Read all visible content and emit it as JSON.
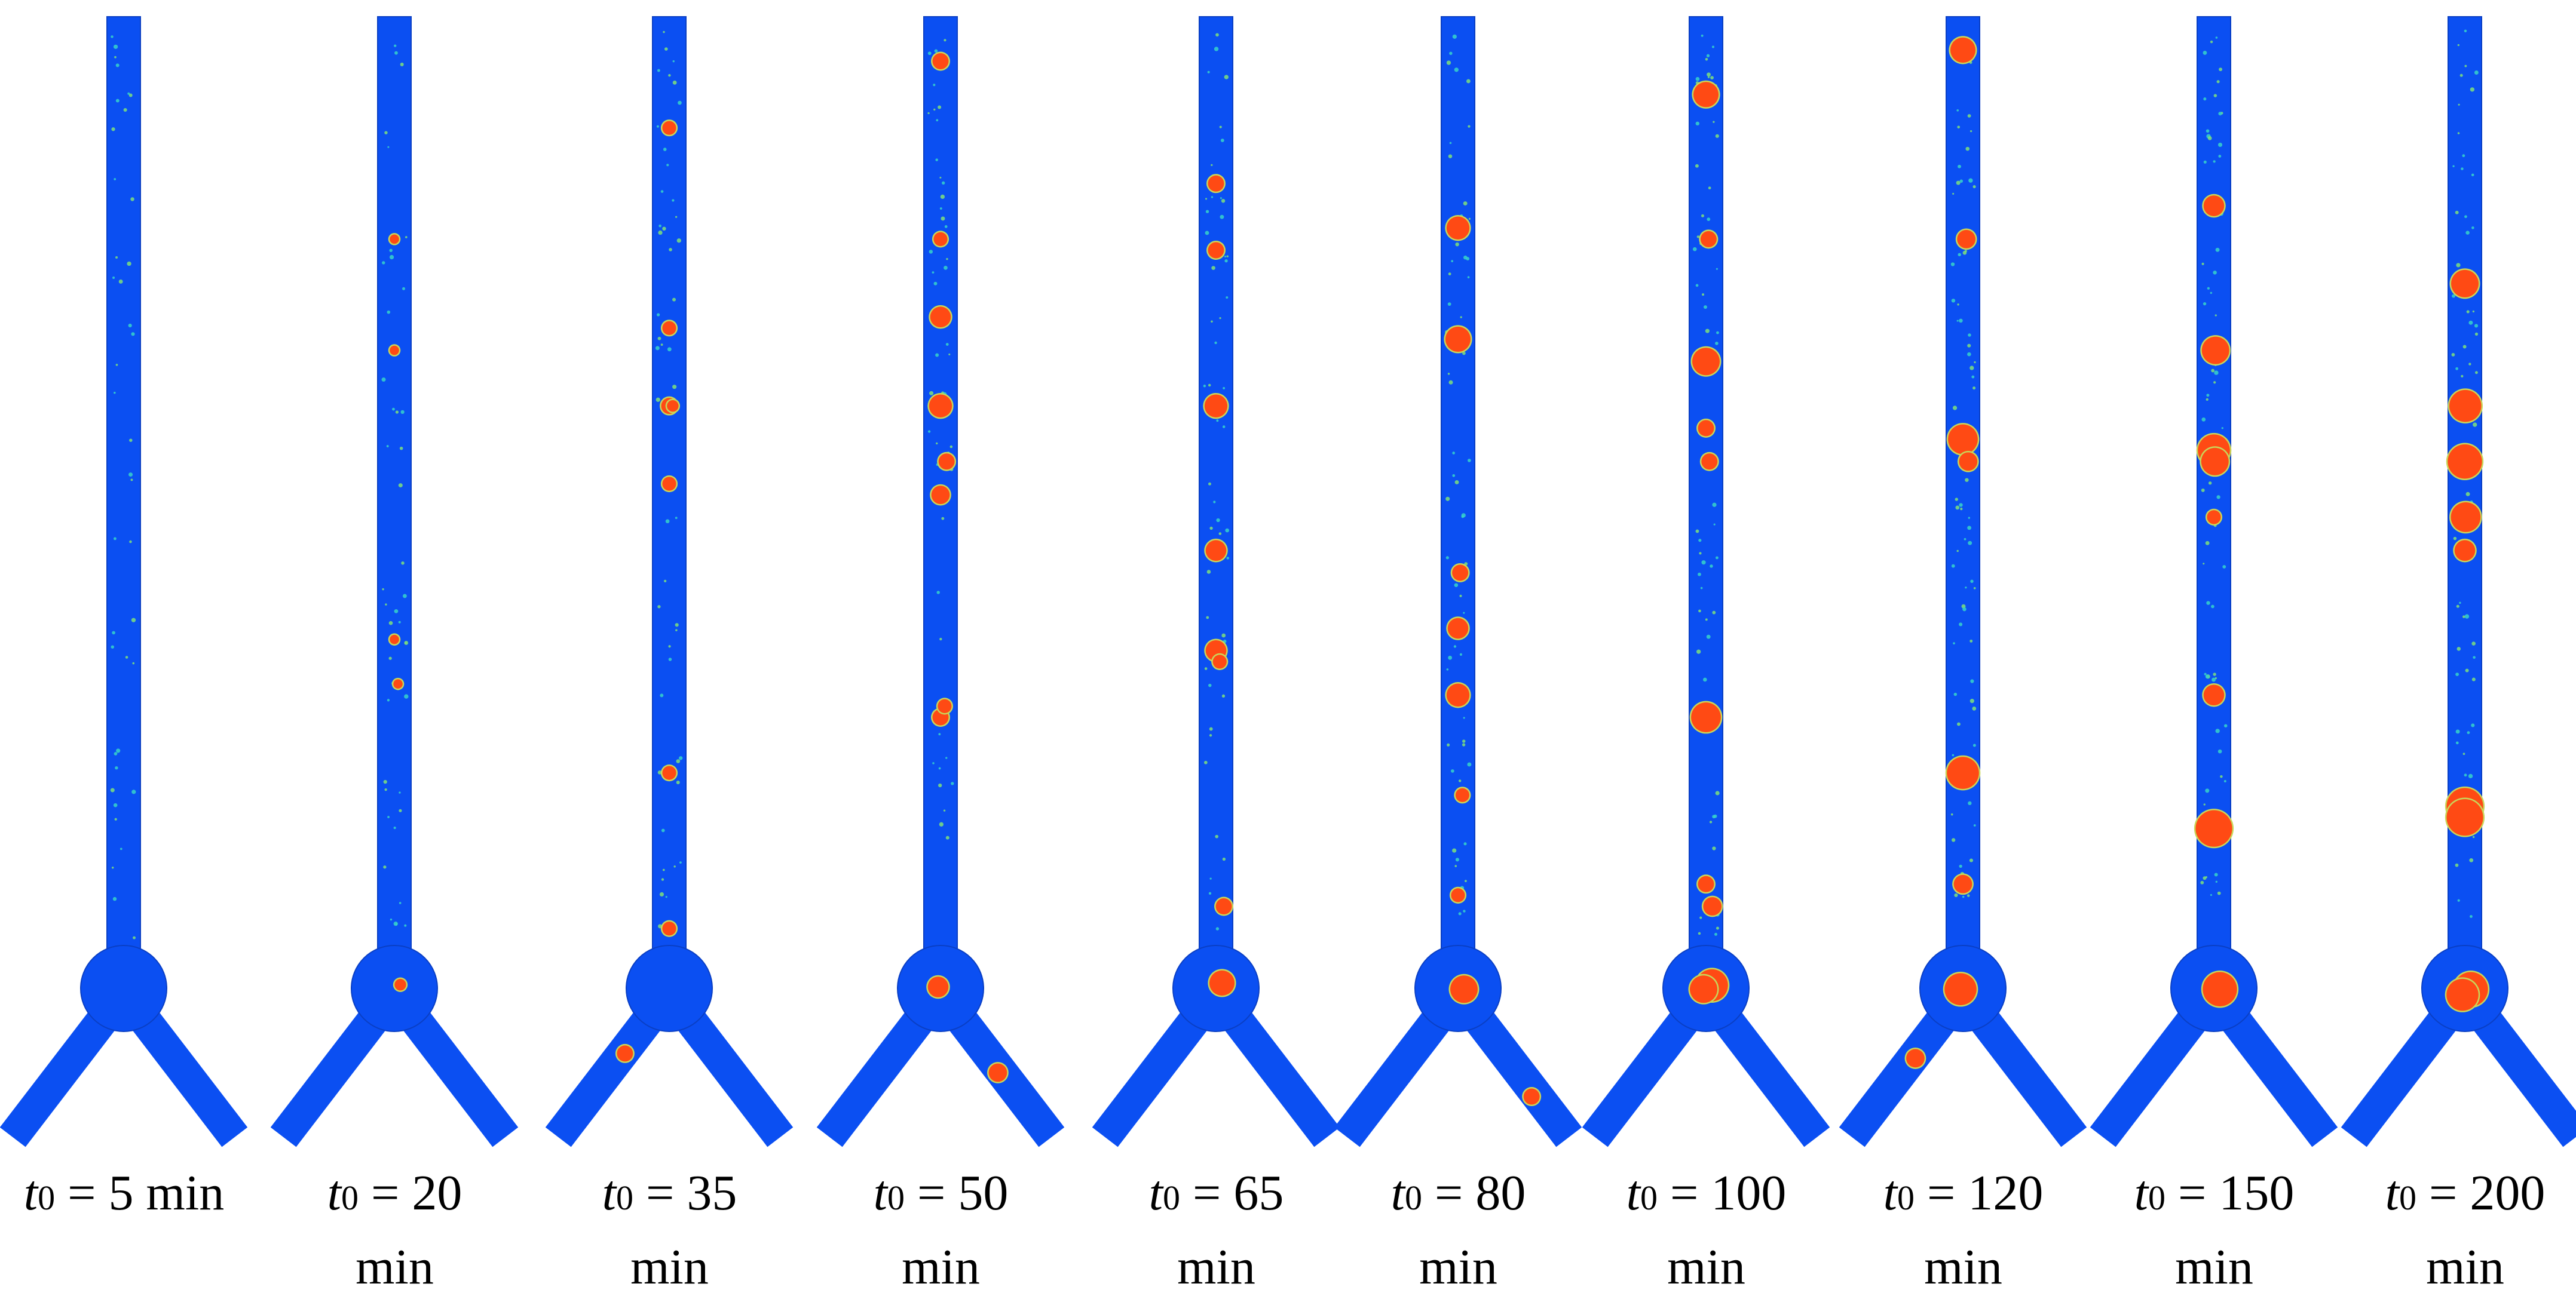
{
  "colors": {
    "channel": "#0b4ff2",
    "channel_outline": "#0a3fc4",
    "noise": "#37d4c9",
    "speck": "#7fe07a",
    "bubble": "#ff4a14",
    "bubble_ring": "#c8d65a"
  },
  "panels": [
    {
      "t_symbol": "t",
      "t_sub": "0",
      "equals": "=",
      "value": "5 min",
      "unit": "",
      "bubbles": []
    },
    {
      "t_symbol": "t",
      "t_sub": "0",
      "equals": "=",
      "value": "20",
      "unit": "min",
      "bubbles": [
        [
          0.0,
          0.56,
          2
        ],
        [
          0.0,
          0.3,
          2
        ],
        [
          0.0,
          0.2,
          2
        ],
        [
          0.0,
          0.86,
          3
        ],
        [
          0.3,
          0.6,
          2
        ]
      ]
    },
    {
      "t_symbol": "t",
      "t_sub": "0",
      "equals": "=",
      "value": "35",
      "unit": "min",
      "bubbles": [
        [
          0.0,
          0.1,
          4
        ],
        [
          0.0,
          0.28,
          4
        ],
        [
          0.0,
          0.35,
          5
        ],
        [
          0.0,
          0.42,
          4
        ],
        [
          0.0,
          0.68,
          4
        ],
        [
          0.0,
          0.82,
          4
        ],
        [
          0.35,
          0.9,
          5
        ],
        [
          0.32,
          0.35,
          3
        ]
      ]
    },
    {
      "t_symbol": "t",
      "t_sub": "0",
      "equals": "=",
      "value": "50",
      "unit": "min",
      "bubbles": [
        [
          0.0,
          0.04,
          5
        ],
        [
          0.0,
          0.2,
          4
        ],
        [
          0.0,
          0.27,
          7
        ],
        [
          0.0,
          0.35,
          8
        ],
        [
          0.0,
          0.43,
          6
        ],
        [
          0.0,
          0.63,
          5
        ],
        [
          -0.45,
          0.88,
          7
        ],
        [
          0.55,
          0.88,
          6
        ],
        [
          0.7,
          0.4,
          5
        ],
        [
          0.42,
          0.62,
          4
        ]
      ]
    },
    {
      "t_symbol": "t",
      "t_sub": "0",
      "equals": "=",
      "value": "65",
      "unit": "min",
      "bubbles": [
        [
          0.0,
          0.15,
          5
        ],
        [
          0.0,
          0.21,
          5
        ],
        [
          0.0,
          0.35,
          8
        ],
        [
          0.0,
          0.48,
          7
        ],
        [
          0.0,
          0.57,
          7
        ],
        [
          0.0,
          0.845,
          9
        ],
        [
          0.38,
          0.58,
          4
        ],
        [
          0.9,
          0.8,
          5
        ]
      ]
    },
    {
      "t_symbol": "t",
      "t_sub": "0",
      "equals": "=",
      "value": "80",
      "unit": "min",
      "bubbles": [
        [
          0.0,
          0.19,
          8
        ],
        [
          0.0,
          0.29,
          9
        ],
        [
          0.0,
          0.55,
          7
        ],
        [
          0.0,
          0.61,
          8
        ],
        [
          0.0,
          0.79,
          4
        ],
        [
          0.1,
          0.9,
          10
        ],
        [
          0.25,
          0.5,
          5
        ],
        [
          0.45,
          0.7,
          4
        ],
        [
          0.8,
          0.85,
          5
        ]
      ]
    },
    {
      "t_symbol": "t",
      "t_sub": "0",
      "equals": "=",
      "value": "100",
      "unit": "min",
      "bubbles": [
        [
          0.0,
          0.07,
          9
        ],
        [
          0.0,
          0.31,
          10
        ],
        [
          0.0,
          0.37,
          5
        ],
        [
          0.0,
          0.63,
          11
        ],
        [
          0.0,
          0.78,
          5
        ],
        [
          0.0,
          0.865,
          12
        ],
        [
          0.1,
          0.9,
          10
        ],
        [
          0.3,
          0.2,
          5
        ],
        [
          0.4,
          0.4,
          5
        ],
        [
          0.85,
          0.8,
          6
        ]
      ]
    },
    {
      "t_symbol": "t",
      "t_sub": "0",
      "equals": "=",
      "value": "120",
      "unit": "min",
      "bubbles": [
        [
          0.0,
          0.03,
          9
        ],
        [
          0.0,
          0.38,
          11
        ],
        [
          0.0,
          0.68,
          12
        ],
        [
          0.0,
          0.78,
          6
        ],
        [
          0.1,
          0.9,
          12
        ],
        [
          0.45,
          0.2,
          6
        ],
        [
          0.4,
          0.85,
          6
        ],
        [
          0.7,
          0.4,
          6
        ]
      ]
    },
    {
      "t_symbol": "t",
      "t_sub": "0",
      "equals": "=",
      "value": "150",
      "unit": "min",
      "bubbles": [
        [
          0.0,
          0.17,
          7
        ],
        [
          0.0,
          0.39,
          12
        ],
        [
          0.0,
          0.45,
          4
        ],
        [
          0.0,
          0.61,
          7
        ],
        [
          0.0,
          0.73,
          14
        ],
        [
          0.1,
          0.9,
          13
        ],
        [
          0.35,
          0.4,
          10
        ],
        [
          0.55,
          0.3,
          10
        ]
      ]
    },
    {
      "t_symbol": "t",
      "t_sub": "0",
      "equals": "=",
      "value": "200",
      "unit": "min",
      "bubbles": [
        [
          0.0,
          0.24,
          10
        ],
        [
          0.0,
          0.4,
          13
        ],
        [
          0.0,
          0.48,
          7
        ],
        [
          0.0,
          0.71,
          14
        ],
        [
          0.0,
          0.72,
          14
        ],
        [
          0.1,
          0.9,
          13
        ],
        [
          0.15,
          0.95,
          12
        ],
        [
          0.45,
          0.45,
          11
        ],
        [
          0.6,
          0.35,
          12
        ]
      ]
    }
  ]
}
